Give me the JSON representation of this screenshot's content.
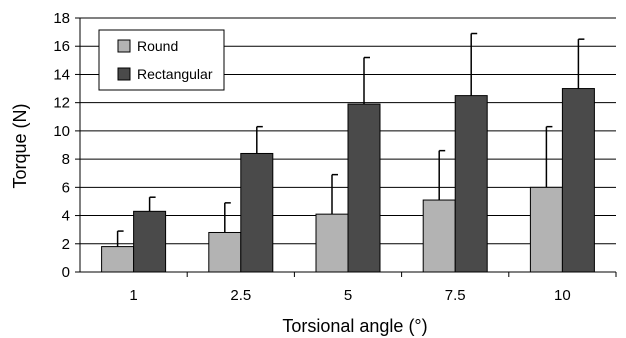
{
  "chart_data": {
    "type": "bar",
    "title": "",
    "xlabel": "Torsional angle (°)",
    "ylabel": "Torque (N)",
    "categories": [
      "1",
      "2.5",
      "5",
      "7.5",
      "10"
    ],
    "ylim": [
      0,
      18
    ],
    "yticks": [
      0,
      2,
      4,
      6,
      8,
      10,
      12,
      14,
      16,
      18
    ],
    "grid": true,
    "legend": "top-left",
    "series": [
      {
        "name": "Round",
        "color": "#b3b3b3",
        "values": [
          1.8,
          2.8,
          4.1,
          5.1,
          6.0
        ],
        "error": [
          1.1,
          2.1,
          2.8,
          3.5,
          4.3
        ]
      },
      {
        "name": "Rectangular",
        "color": "#4a4a4a",
        "values": [
          4.3,
          8.4,
          11.9,
          12.5,
          13.0
        ],
        "error": [
          1.0,
          1.9,
          3.3,
          4.4,
          3.5
        ]
      }
    ]
  }
}
